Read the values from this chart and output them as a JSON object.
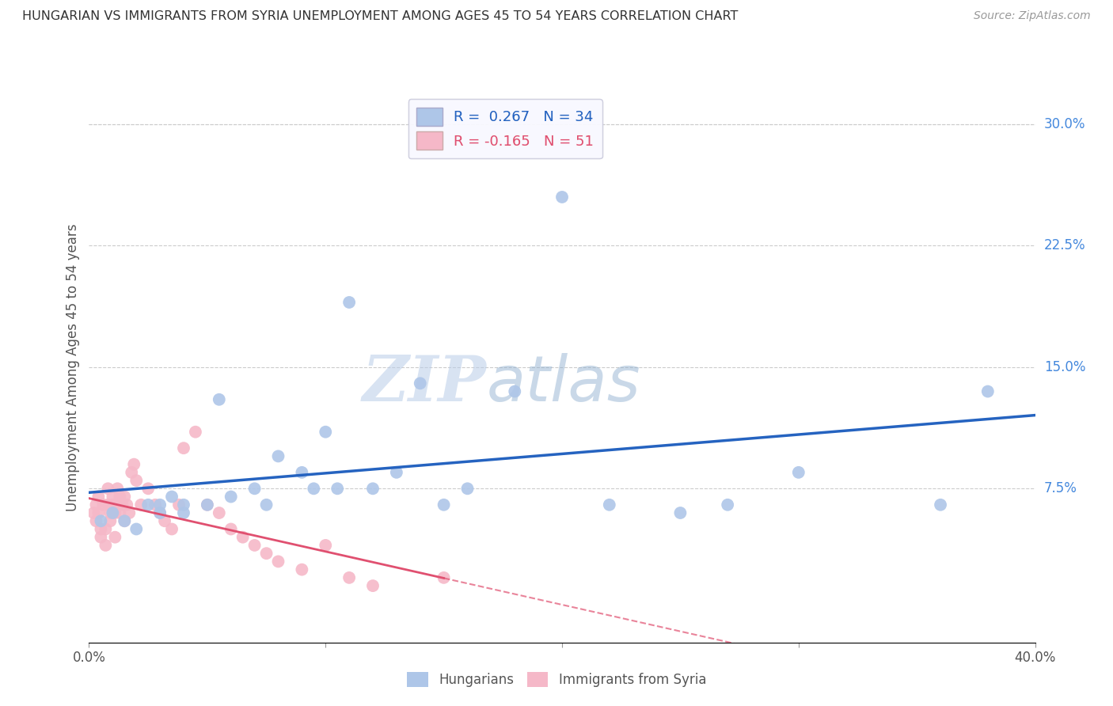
{
  "title": "HUNGARIAN VS IMMIGRANTS FROM SYRIA UNEMPLOYMENT AMONG AGES 45 TO 54 YEARS CORRELATION CHART",
  "source": "Source: ZipAtlas.com",
  "ylabel": "Unemployment Among Ages 45 to 54 years",
  "xlim": [
    0.0,
    0.4
  ],
  "ylim": [
    -0.02,
    0.32
  ],
  "blue_R": 0.267,
  "blue_N": 34,
  "pink_R": -0.165,
  "pink_N": 51,
  "blue_color": "#aec6e8",
  "pink_color": "#f5b8c8",
  "blue_line_color": "#2563c0",
  "pink_line_color": "#e05070",
  "grid_color": "#cccccc",
  "background_color": "#ffffff",
  "watermark_zip": "ZIP",
  "watermark_atlas": "atlas",
  "blue_x": [
    0.005,
    0.01,
    0.015,
    0.02,
    0.025,
    0.03,
    0.03,
    0.035,
    0.04,
    0.04,
    0.05,
    0.055,
    0.06,
    0.07,
    0.075,
    0.08,
    0.09,
    0.095,
    0.1,
    0.105,
    0.11,
    0.12,
    0.13,
    0.14,
    0.15,
    0.16,
    0.18,
    0.2,
    0.22,
    0.25,
    0.27,
    0.3,
    0.36,
    0.38
  ],
  "blue_y": [
    0.055,
    0.06,
    0.055,
    0.05,
    0.065,
    0.065,
    0.06,
    0.07,
    0.065,
    0.06,
    0.065,
    0.13,
    0.07,
    0.075,
    0.065,
    0.095,
    0.085,
    0.075,
    0.11,
    0.075,
    0.19,
    0.075,
    0.085,
    0.14,
    0.065,
    0.075,
    0.135,
    0.255,
    0.065,
    0.06,
    0.065,
    0.085,
    0.065,
    0.135
  ],
  "pink_x": [
    0.002,
    0.003,
    0.003,
    0.004,
    0.004,
    0.005,
    0.005,
    0.006,
    0.007,
    0.007,
    0.008,
    0.008,
    0.009,
    0.009,
    0.01,
    0.01,
    0.011,
    0.011,
    0.012,
    0.012,
    0.013,
    0.013,
    0.014,
    0.015,
    0.015,
    0.016,
    0.017,
    0.018,
    0.019,
    0.02,
    0.022,
    0.025,
    0.028,
    0.03,
    0.032,
    0.035,
    0.038,
    0.04,
    0.045,
    0.05,
    0.055,
    0.06,
    0.065,
    0.07,
    0.075,
    0.08,
    0.09,
    0.1,
    0.11,
    0.12,
    0.15
  ],
  "pink_y": [
    0.06,
    0.065,
    0.055,
    0.07,
    0.06,
    0.05,
    0.045,
    0.065,
    0.05,
    0.04,
    0.075,
    0.065,
    0.06,
    0.055,
    0.07,
    0.065,
    0.06,
    0.045,
    0.075,
    0.065,
    0.07,
    0.06,
    0.065,
    0.07,
    0.055,
    0.065,
    0.06,
    0.085,
    0.09,
    0.08,
    0.065,
    0.075,
    0.065,
    0.06,
    0.055,
    0.05,
    0.065,
    0.1,
    0.11,
    0.065,
    0.06,
    0.05,
    0.045,
    0.04,
    0.035,
    0.03,
    0.025,
    0.04,
    0.02,
    0.015,
    0.02
  ]
}
